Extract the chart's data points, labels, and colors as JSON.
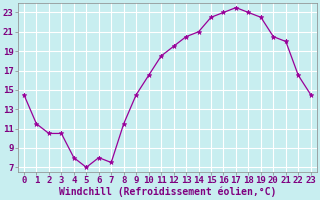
{
  "x": [
    0,
    1,
    2,
    3,
    4,
    5,
    6,
    7,
    8,
    9,
    10,
    11,
    12,
    13,
    14,
    15,
    16,
    17,
    18,
    19,
    20,
    21,
    22,
    23
  ],
  "y": [
    14.5,
    11.5,
    10.5,
    10.5,
    8.0,
    7.0,
    8.0,
    7.5,
    11.5,
    14.5,
    16.5,
    18.5,
    19.5,
    20.5,
    21.0,
    22.5,
    23.0,
    23.5,
    23.0,
    22.5,
    20.5,
    20.0,
    16.5,
    14.5
  ],
  "line_color": "#990099",
  "marker": "p",
  "bg_color": "#c8eef0",
  "grid_color": "#ffffff",
  "xlabel": "Windchill (Refroidissement éolien,°C)",
  "xlabel_color": "#800080",
  "xlabel_fontsize": 7,
  "tick_label_color": "#800080",
  "tick_fontsize": 6.5,
  "ylim": [
    6.5,
    24.0
  ],
  "xlim": [
    -0.5,
    23.5
  ],
  "yticks": [
    7,
    9,
    11,
    13,
    15,
    17,
    19,
    21,
    23
  ],
  "xtick_labels": [
    "0",
    "1",
    "2",
    "3",
    "4",
    "5",
    "6",
    "7",
    "8",
    "9",
    "10",
    "11",
    "12",
    "13",
    "14",
    "15",
    "16",
    "17",
    "18",
    "19",
    "20",
    "21",
    "22",
    "23"
  ]
}
